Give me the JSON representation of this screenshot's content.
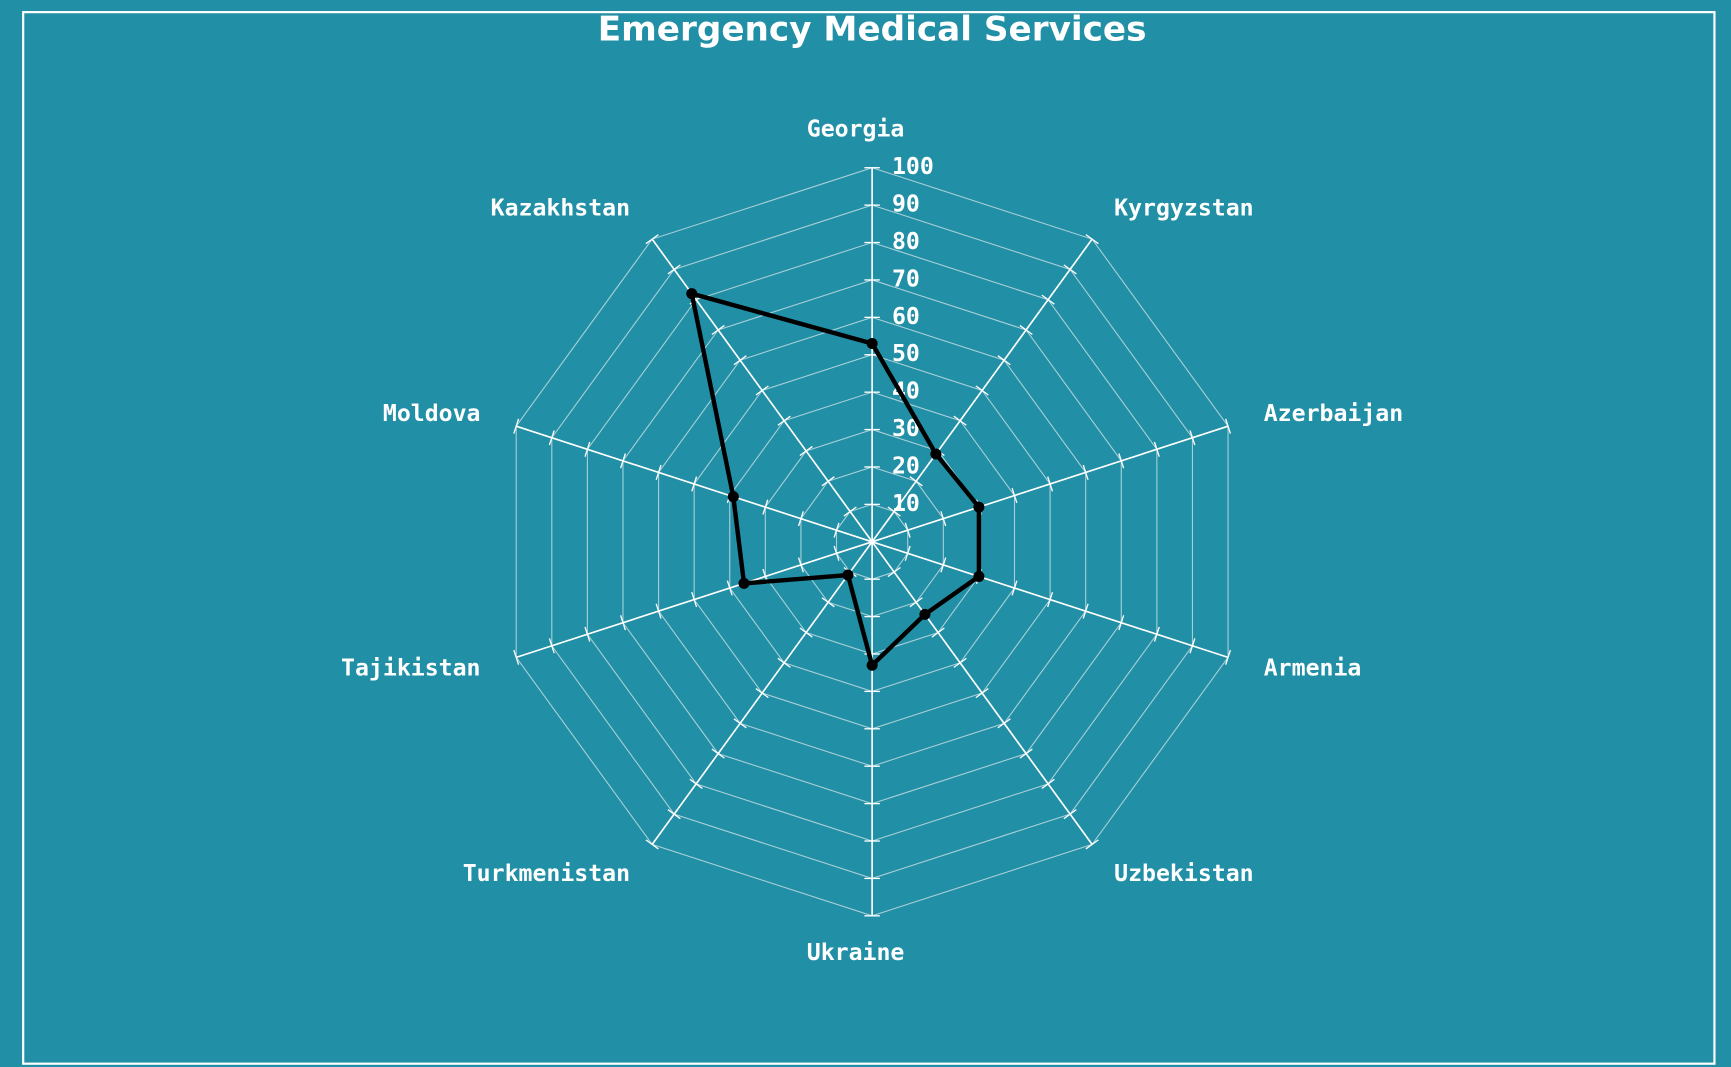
{
  "chart_data": {
    "type": "radar",
    "title": "Emergency Medical Services",
    "categories": [
      "Georgia",
      "Kyrgyzstan",
      "Azerbaijan",
      "Armenia",
      "Uzbekistan",
      "Ukraine",
      "Turkmenistan",
      "Tajikistan",
      "Moldova",
      "Kazakhstan"
    ],
    "values": [
      53,
      29,
      30,
      30,
      24,
      33,
      11,
      36,
      39,
      82
    ],
    "color": "#000000",
    "rlim": [
      0,
      100
    ],
    "rticks": [
      10,
      20,
      30,
      40,
      50,
      60,
      70,
      80,
      90,
      100
    ],
    "grid": true
  }
}
